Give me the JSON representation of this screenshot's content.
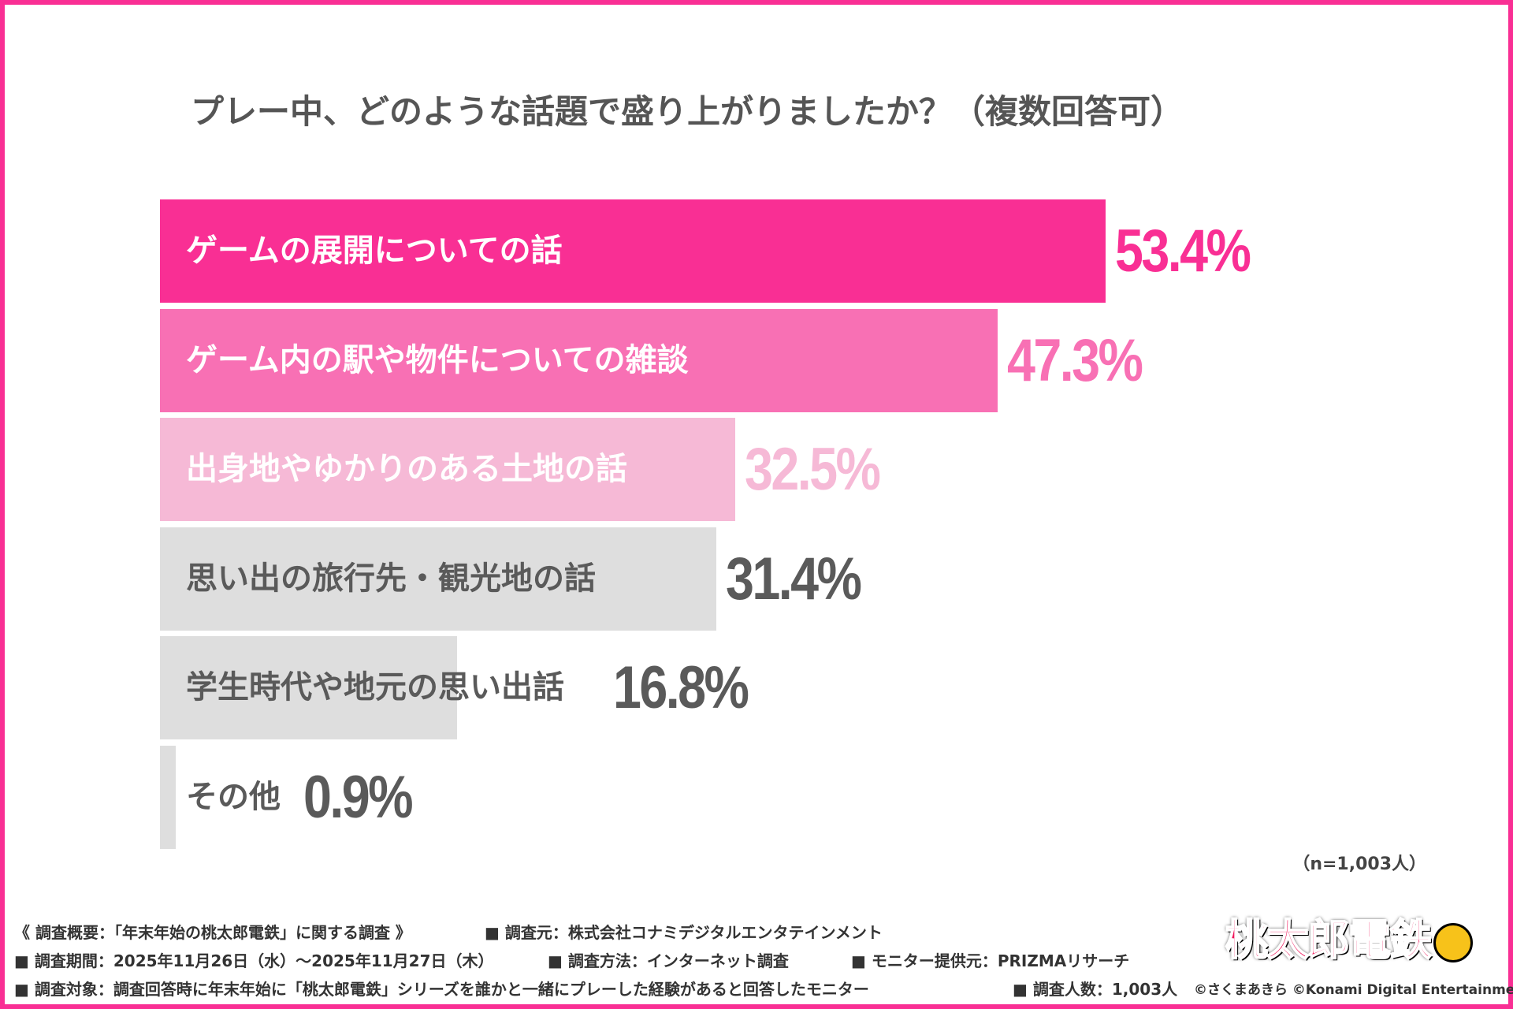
{
  "chart_data": {
    "type": "bar",
    "orientation": "horizontal",
    "title": "プレー中、どのような話題で盛り上がりましたか？（複数回答可）",
    "categories": [
      "ゲームの展開についての話",
      "ゲーム内の駅や物件についての雑談",
      "出身地やゆかりのある土地の話",
      "思い出の旅行先・観光地の話",
      "学生時代や地元の思い出話",
      "その他"
    ],
    "values": [
      53.4,
      47.3,
      32.5,
      31.4,
      16.8,
      0.9
    ],
    "value_labels": [
      "53.4%",
      "47.3%",
      "32.5%",
      "31.4%",
      "16.8%",
      "0.9%"
    ],
    "bar_colors": [
      "#f92f94",
      "#f870b4",
      "#f6b9d6",
      "#dedede",
      "#dedede",
      "#dedede"
    ],
    "label_colors": [
      "#ffffff",
      "#ffffff",
      "#ffffff",
      "#5a5a5a",
      "#5a5a5a",
      "#5a5a5a"
    ],
    "value_colors": [
      "#f92f94",
      "#f870b4",
      "#f6b9d6",
      "#5a5a5a",
      "#5a5a5a",
      "#5a5a5a"
    ],
    "xlim": [
      0,
      100
    ],
    "grid": false,
    "note": "（n=1,003人）"
  },
  "footer": {
    "line1a": "《 調査概要：「年末年始の桃太郎電鉄」に関する調査 》",
    "line1b": "■ 調査元：株式会社コナミデジタルエンタテインメント",
    "line2a": "■ 調査期間：2025年11月26日（水）～2025年11月27日（木）",
    "line2b": "■ 調査方法：インターネット調査",
    "line2c": "■ モニター提供元：PRIZMAリサーチ",
    "line3a": "■ 調査対象：調査回答時に年末年始に「桃太郎電鉄」シリーズを誰かと一緒にプレーした経験があると回答したモニター",
    "line3b": "■ 調査人数：1,003人",
    "copyright": "©さくまあきら ©Konami Digital Entertainment"
  },
  "logo": {
    "text": "桃太郎電鉄"
  },
  "colors": {
    "accent": "#f92f94"
  }
}
